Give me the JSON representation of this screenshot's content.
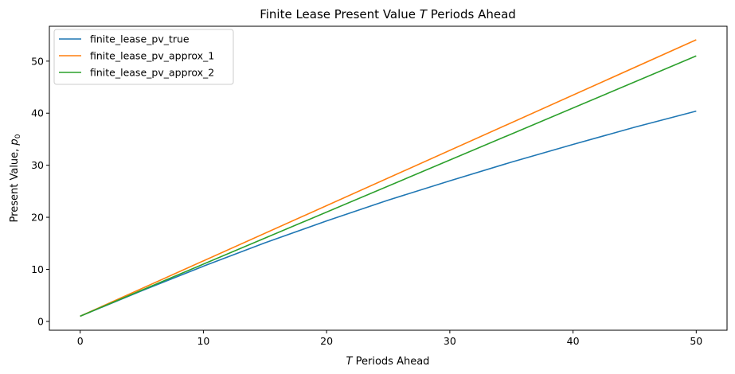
{
  "chart_data": {
    "type": "line",
    "title_prefix": "Finite Lease Present Value ",
    "title_var": "T",
    "title_suffix": " Periods Ahead",
    "xlabel_var": "T",
    "xlabel_suffix": " Periods Ahead",
    "ylabel_prefix": "Present Value, ",
    "ylabel_var": "p",
    "ylabel_sub": "0",
    "xlim": [
      -2.5,
      52.5
    ],
    "ylim": [
      -1.7,
      56.7
    ],
    "xticks": [
      0,
      10,
      20,
      30,
      40,
      50
    ],
    "yticks": [
      0,
      10,
      20,
      30,
      40,
      50
    ],
    "grid": false,
    "legend_position": "top-left",
    "series": [
      {
        "name": "finite_lease_pv_true",
        "color": "#1f77b4",
        "x": [
          0,
          5,
          10,
          15,
          20,
          25,
          30,
          35,
          40,
          45,
          50
        ],
        "values": [
          1.0,
          5.88,
          10.6,
          15.1,
          19.3,
          23.3,
          27.0,
          30.6,
          34.0,
          37.3,
          40.4
        ]
      },
      {
        "name": "finite_lease_pv_approx_1",
        "color": "#ff7f0e",
        "x": [
          0,
          50
        ],
        "values": [
          1.0,
          54.1
        ]
      },
      {
        "name": "finite_lease_pv_approx_2",
        "color": "#2ca02c",
        "x": [
          0,
          50
        ],
        "values": [
          1.0,
          51.0
        ]
      }
    ]
  }
}
